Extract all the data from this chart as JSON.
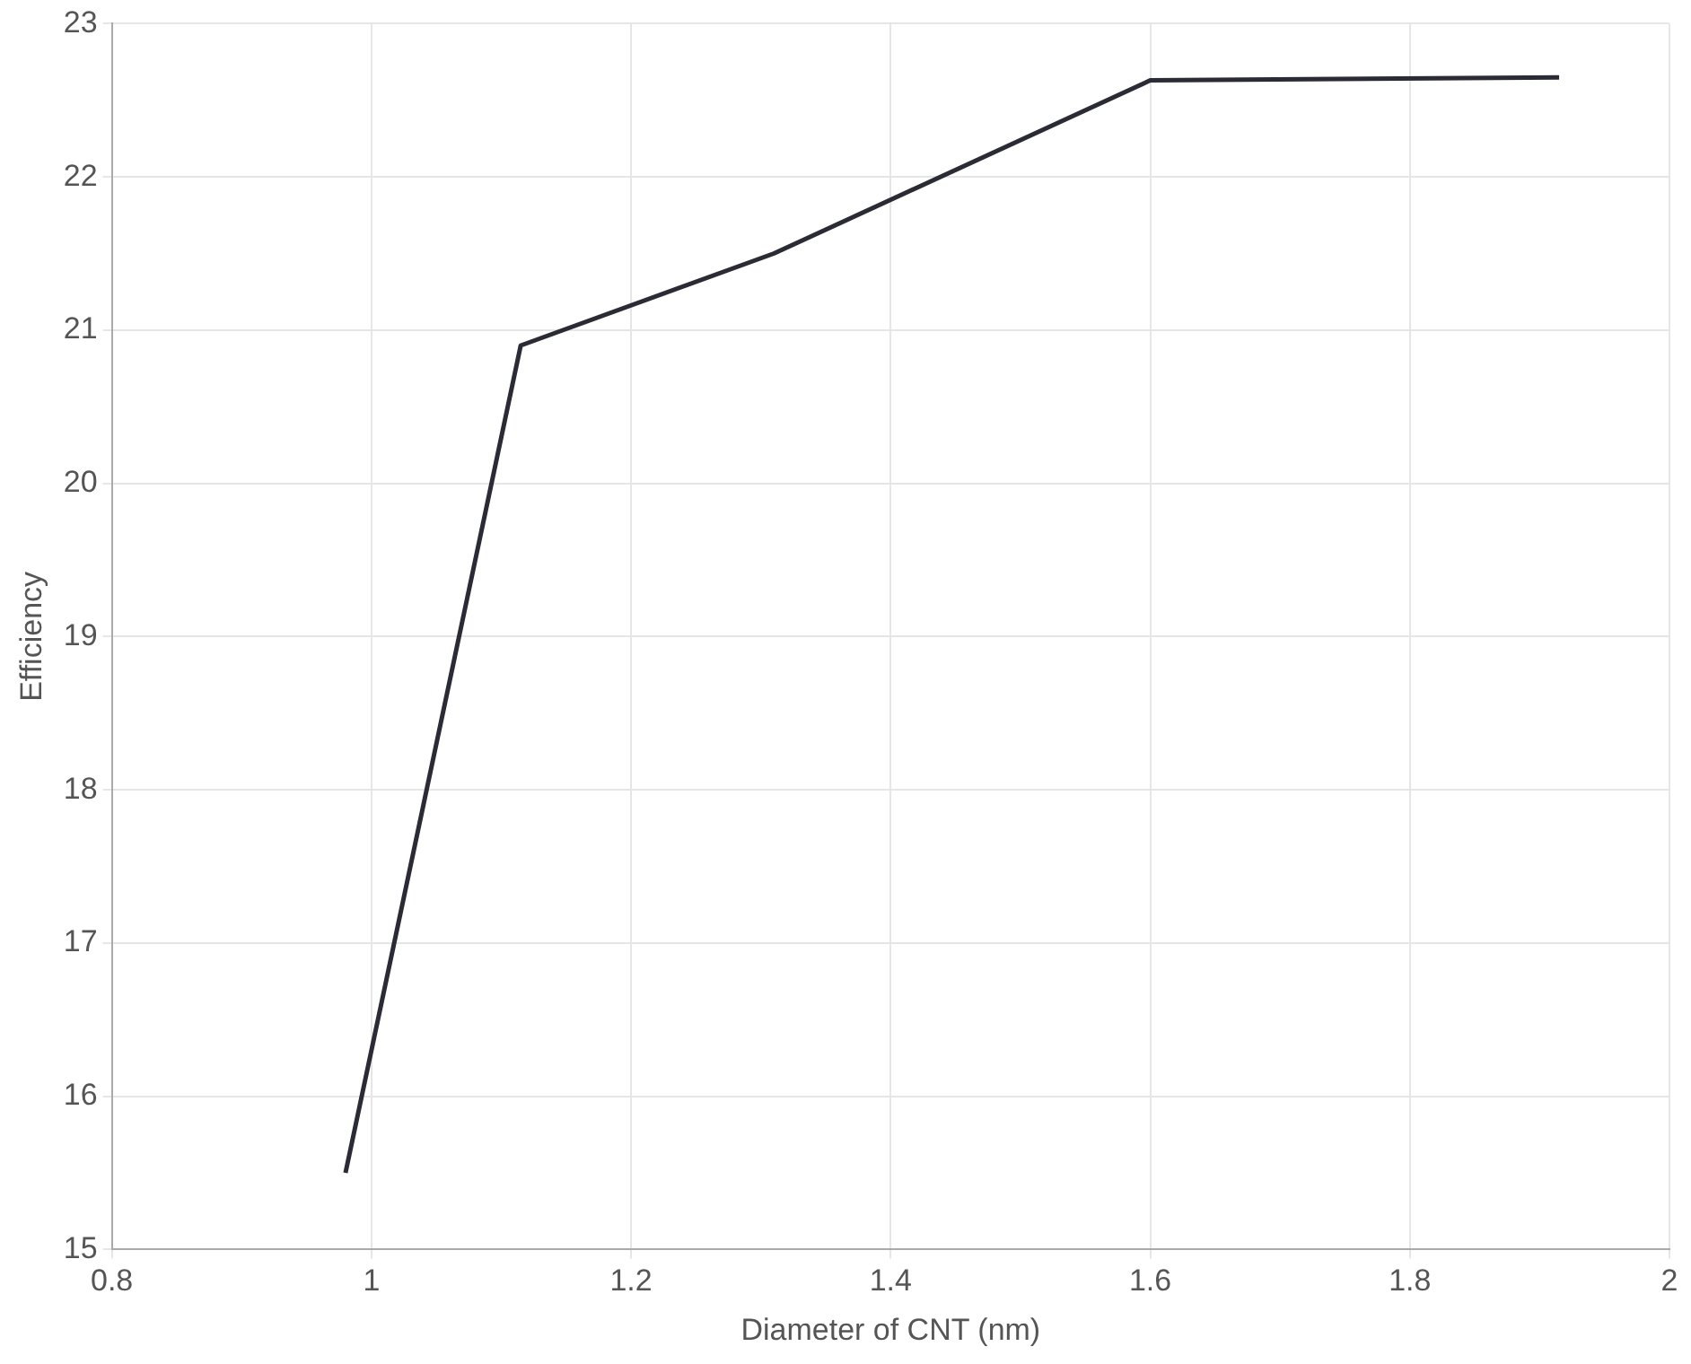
{
  "chart_data": {
    "type": "line",
    "xlabel": "Diameter of CNT (nm)",
    "ylabel": "Efficiency",
    "x": [
      0.98,
      1.04,
      1.115,
      1.31,
      1.6,
      1.915
    ],
    "series": [
      {
        "color": "#2b2b35",
        "values": [
          15.5,
          17.9,
          20.9,
          21.5,
          22.63,
          22.65
        ]
      }
    ],
    "xlim": [
      0.8,
      2
    ],
    "xticks": [
      0.8,
      1,
      1.2,
      1.4,
      1.6,
      1.8,
      2
    ],
    "ylim": [
      15,
      23
    ],
    "yticks": [
      15,
      16,
      17,
      18,
      19,
      20,
      21,
      22,
      23
    ],
    "grid": true,
    "legend": false,
    "marker": "none",
    "line_style": "solid"
  }
}
